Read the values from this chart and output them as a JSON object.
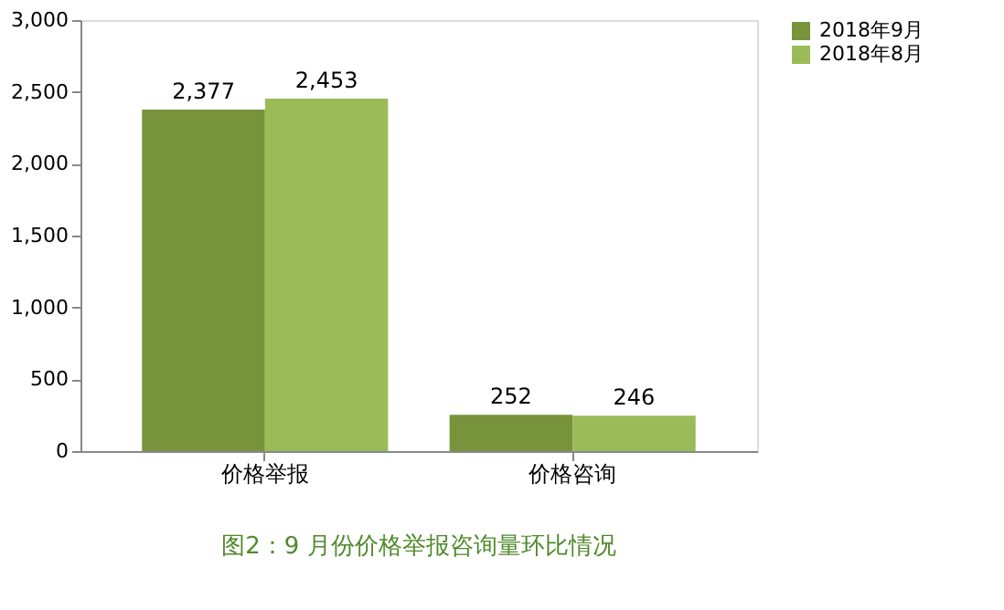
{
  "chart_data": {
    "type": "bar",
    "categories": [
      "价格举报",
      "价格咨询"
    ],
    "series": [
      {
        "name": "2018年9月",
        "color": "#77933c",
        "values": [
          2377,
          252
        ],
        "value_labels": [
          "2,377",
          "252"
        ]
      },
      {
        "name": "2018年8月",
        "color": "#9bbb59",
        "values": [
          2453,
          246
        ],
        "value_labels": [
          "2,453",
          "246"
        ]
      }
    ],
    "ylim": [
      0,
      3000
    ],
    "yticks": [
      {
        "value": 0,
        "label": "0"
      },
      {
        "value": 500,
        "label": "500"
      },
      {
        "value": 1000,
        "label": "1,000"
      },
      {
        "value": 1500,
        "label": "1,500"
      },
      {
        "value": 2000,
        "label": "2,000"
      },
      {
        "value": 2500,
        "label": "2,500"
      },
      {
        "value": 3000,
        "label": "3,000"
      }
    ],
    "grid": false,
    "legend": "right",
    "annotations": [
      "图2：9 月份价格举报咨询量环比情况"
    ]
  }
}
